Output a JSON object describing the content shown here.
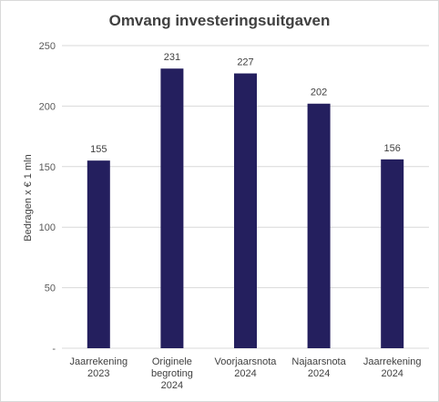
{
  "chart_data": {
    "type": "bar",
    "title": "Omvang investeringsuitgaven",
    "ylabel": "Bedragen x € 1 mln",
    "xlabel": "",
    "categories": [
      [
        "Jaarrekening",
        "2023"
      ],
      [
        "Originele",
        "begroting",
        "2024"
      ],
      [
        "Voorjaarsnota",
        "2024"
      ],
      [
        "Najaarsnota",
        "2024"
      ],
      [
        "Jaarrekening",
        "2024"
      ]
    ],
    "values": [
      155,
      231,
      227,
      202,
      156
    ],
    "data_labels": [
      "155",
      "231",
      "227",
      "202",
      "156"
    ],
    "ylim": [
      0,
      250
    ],
    "yticks": [
      0,
      50,
      100,
      150,
      200,
      250
    ],
    "ytick_labels": [
      "-",
      "50",
      "100",
      "150",
      "200",
      "250"
    ],
    "grid": true,
    "bar_color": "#241f5e",
    "grid_color": "#d9d9d9"
  }
}
